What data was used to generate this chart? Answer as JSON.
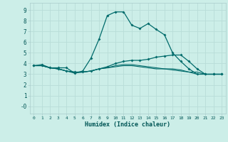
{
  "xlabel": "Humidex (Indice chaleur)",
  "background_color": "#cceee8",
  "grid_color": "#b8ddd8",
  "line_color": "#006b6b",
  "xlim": [
    -0.5,
    23.5
  ],
  "ylim": [
    -0.7,
    9.7
  ],
  "xticks": [
    0,
    1,
    2,
    3,
    4,
    5,
    6,
    7,
    8,
    9,
    10,
    11,
    12,
    13,
    14,
    15,
    16,
    17,
    18,
    19,
    20,
    21,
    22,
    23
  ],
  "ytick_labels": [
    "9",
    "8",
    "7",
    "6",
    "5",
    "4",
    "3",
    "2",
    "1",
    "-0"
  ],
  "ytick_vals": [
    9,
    8,
    7,
    6,
    5,
    4,
    3,
    2,
    1,
    0
  ],
  "line1_x": [
    0,
    1,
    2,
    3,
    4,
    5,
    6,
    7,
    8,
    9,
    10,
    11,
    12,
    13,
    14,
    15,
    16,
    17,
    18,
    19,
    20,
    21,
    22,
    23
  ],
  "line1_y": [
    3.8,
    3.9,
    3.6,
    3.6,
    3.6,
    3.1,
    3.3,
    4.5,
    6.3,
    8.5,
    8.85,
    8.85,
    7.6,
    7.3,
    7.75,
    7.2,
    6.7,
    5.0,
    4.2,
    3.5,
    3.0,
    3.0,
    3.0,
    3.0
  ],
  "line2_x": [
    0,
    1,
    2,
    3,
    4,
    5,
    6,
    7,
    8,
    9,
    10,
    11,
    12,
    13,
    14,
    15,
    16,
    17,
    18,
    19,
    20,
    21,
    22,
    23
  ],
  "line2_y": [
    3.8,
    3.8,
    3.6,
    3.5,
    3.3,
    3.2,
    3.2,
    3.3,
    3.5,
    3.7,
    4.0,
    4.2,
    4.3,
    4.3,
    4.4,
    4.6,
    4.7,
    4.8,
    4.8,
    4.2,
    3.5,
    3.0,
    3.0,
    3.0
  ],
  "line3_x": [
    0,
    1,
    2,
    3,
    4,
    5,
    6,
    7,
    8,
    9,
    10,
    11,
    12,
    13,
    14,
    15,
    16,
    17,
    18,
    19,
    20,
    21,
    22,
    23
  ],
  "line3_y": [
    3.8,
    3.8,
    3.6,
    3.5,
    3.3,
    3.2,
    3.2,
    3.3,
    3.5,
    3.6,
    3.8,
    3.9,
    3.9,
    3.8,
    3.7,
    3.6,
    3.5,
    3.5,
    3.4,
    3.2,
    3.2,
    3.0,
    3.0,
    3.0
  ],
  "line4_x": [
    0,
    1,
    2,
    3,
    4,
    5,
    6,
    7,
    8,
    9,
    10,
    11,
    12,
    13,
    14,
    15,
    16,
    17,
    18,
    19,
    20,
    21,
    22,
    23
  ],
  "line4_y": [
    3.8,
    3.8,
    3.6,
    3.5,
    3.3,
    3.1,
    3.2,
    3.3,
    3.5,
    3.6,
    3.7,
    3.8,
    3.8,
    3.7,
    3.6,
    3.5,
    3.5,
    3.4,
    3.3,
    3.2,
    3.0,
    3.0,
    3.0,
    3.0
  ]
}
